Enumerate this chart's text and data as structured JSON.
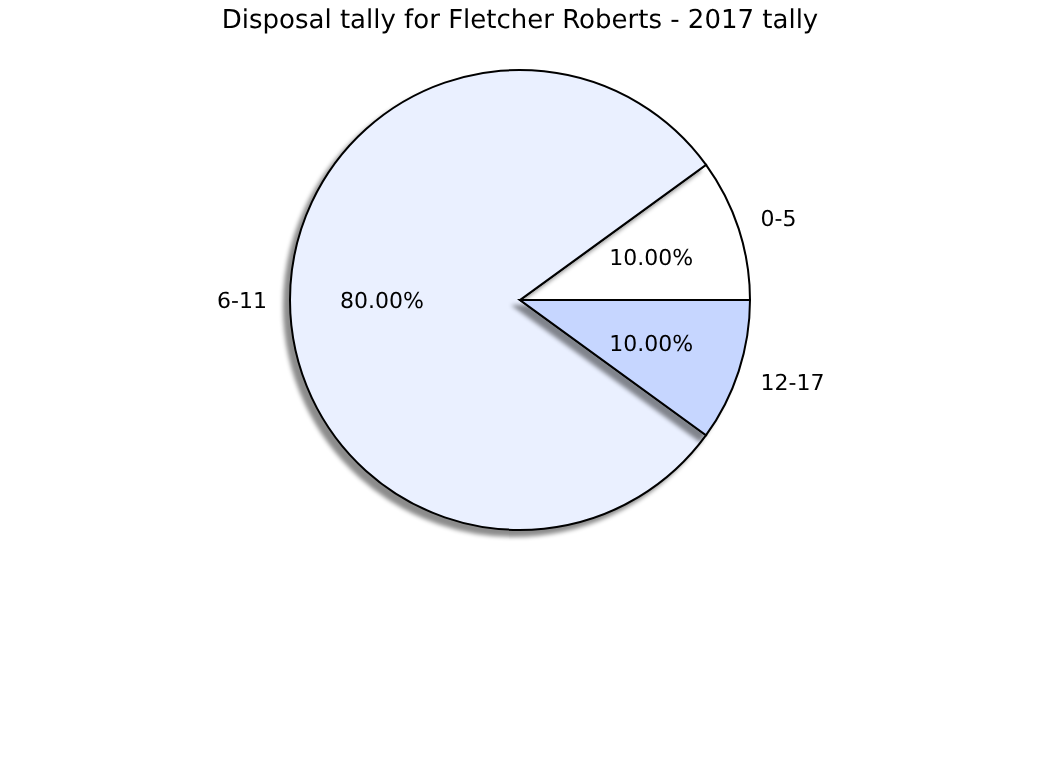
{
  "chart_data": {
    "type": "pie",
    "title": "Disposal tally for Fletcher Roberts - 2017 tally",
    "categories": [
      "0-5",
      "6-11",
      "12-17"
    ],
    "values": [
      10,
      80,
      10
    ],
    "value_labels": [
      "10.00%",
      "80.00%",
      "10.00%"
    ],
    "colors": [
      "#ffffff",
      "#eaf0ff",
      "#c6d6ff"
    ]
  }
}
